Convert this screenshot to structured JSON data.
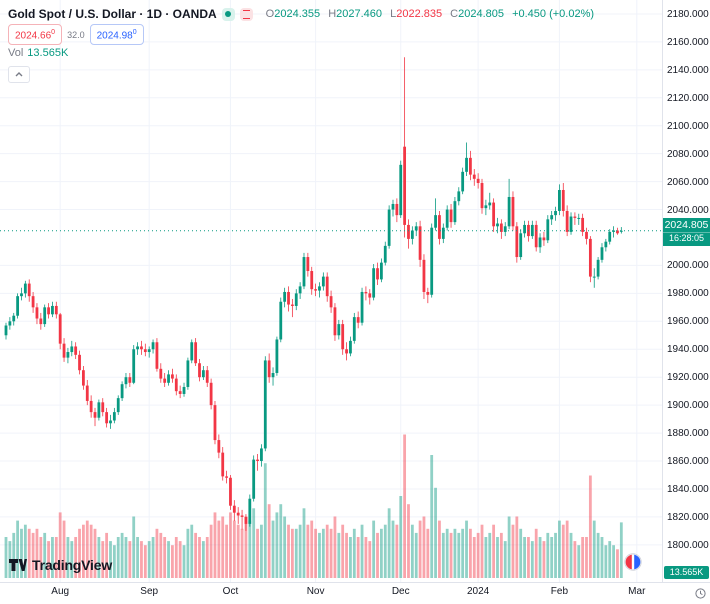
{
  "header": {
    "symbol_title": "Gold Spot / U.S. Dollar · 1D · OANDA",
    "ohlc": {
      "o_label": "O",
      "o": "2024.355",
      "h_label": "H",
      "h": "2027.460",
      "l_label": "L",
      "l": "2022.835",
      "c_label": "C",
      "c": "2024.805",
      "change": "+0.450 (+0.02%)"
    },
    "bid": "2024.66",
    "bid_sup": "0",
    "spread": "32.0",
    "ask": "2024.98",
    "ask_sup": "0",
    "vol_label": "Vol",
    "vol_value": "13.565K"
  },
  "icons": {
    "green_dot": "green-dot-icon",
    "red_list": "red-list-icon",
    "collapse": "chevron-up-icon",
    "clock": "timezone-clock-icon",
    "broker": "broker-logo-icon"
  },
  "colors": {
    "up": "#089981",
    "down": "#f23645",
    "vol_up": "rgba(8,153,129,0.45)",
    "vol_down": "rgba(242,54,69,0.45)",
    "grid": "#f0f3fa",
    "last_price_line": "#089981",
    "bid": "#f23645",
    "ask": "#2962ff"
  },
  "price_axis": {
    "labels": [
      "2180.000",
      "2160.000",
      "2140.000",
      "2120.000",
      "2100.000",
      "2080.000",
      "2060.000",
      "2040.000",
      "2000.000",
      "1980.000",
      "1960.000",
      "1940.000",
      "1920.000",
      "1900.000",
      "1880.000",
      "1860.000",
      "1840.000",
      "1820.000",
      "1800.000"
    ],
    "last_price": "2024.805",
    "countdown": "16:28:05",
    "volume_badge": "13.565K"
  },
  "time_axis": {
    "ticks": [
      {
        "i": 14,
        "label": "Aug"
      },
      {
        "i": 37,
        "label": "Sep"
      },
      {
        "i": 58,
        "label": "Oct"
      },
      {
        "i": 80,
        "label": "Nov"
      },
      {
        "i": 102,
        "label": "Dec"
      },
      {
        "i": 122,
        "label": "2024"
      },
      {
        "i": 143,
        "label": "Feb"
      },
      {
        "i": 163,
        "label": "Mar"
      }
    ]
  },
  "logo": {
    "wordmark": "TradingView"
  },
  "chart_data": {
    "type": "candlestick",
    "title": "Gold Spot / U.S. Dollar",
    "interval": "1D",
    "exchange": "OANDA",
    "ylim": [
      1789,
      2190
    ],
    "grid": true,
    "last_close": 2024.805,
    "candle_format": [
      "open",
      "high",
      "low",
      "close",
      "volume_k"
    ],
    "candles": [
      [
        1950,
        1959,
        1947,
        1957,
        10
      ],
      [
        1957,
        1963,
        1954,
        1960,
        9
      ],
      [
        1960,
        1966,
        1957,
        1964,
        11
      ],
      [
        1964,
        1980,
        1962,
        1978,
        14
      ],
      [
        1978,
        1984,
        1975,
        1980,
        12
      ],
      [
        1980,
        1989,
        1977,
        1987,
        13
      ],
      [
        1987,
        1990,
        1974,
        1978,
        12
      ],
      [
        1978,
        1981,
        1966,
        1970,
        11
      ],
      [
        1970,
        1973,
        1958,
        1962,
        12
      ],
      [
        1962,
        1966,
        1954,
        1958,
        10
      ],
      [
        1958,
        1972,
        1956,
        1970,
        11
      ],
      [
        1970,
        1973,
        1962,
        1965,
        9
      ],
      [
        1965,
        1974,
        1963,
        1971,
        10
      ],
      [
        1971,
        1974,
        1962,
        1965,
        10
      ],
      [
        1965,
        1966,
        1940,
        1944,
        16
      ],
      [
        1944,
        1948,
        1931,
        1934,
        14
      ],
      [
        1934,
        1941,
        1930,
        1938,
        10
      ],
      [
        1938,
        1946,
        1935,
        1942,
        9
      ],
      [
        1942,
        1945,
        1933,
        1936,
        10
      ],
      [
        1936,
        1939,
        1922,
        1925,
        12
      ],
      [
        1925,
        1928,
        1911,
        1914,
        13
      ],
      [
        1914,
        1918,
        1900,
        1903,
        14
      ],
      [
        1903,
        1907,
        1891,
        1895,
        13
      ],
      [
        1895,
        1898,
        1885,
        1891,
        12
      ],
      [
        1891,
        1904,
        1889,
        1902,
        10
      ],
      [
        1902,
        1905,
        1892,
        1895,
        9
      ],
      [
        1895,
        1898,
        1884,
        1887,
        11
      ],
      [
        1887,
        1893,
        1883,
        1889,
        9
      ],
      [
        1889,
        1898,
        1887,
        1895,
        8
      ],
      [
        1895,
        1907,
        1893,
        1905,
        10
      ],
      [
        1905,
        1917,
        1903,
        1915,
        11
      ],
      [
        1915,
        1923,
        1912,
        1920,
        10
      ],
      [
        1920,
        1923,
        1913,
        1916,
        9
      ],
      [
        1916,
        1943,
        1915,
        1940,
        15
      ],
      [
        1940,
        1945,
        1936,
        1942,
        10
      ],
      [
        1942,
        1946,
        1936,
        1940,
        9
      ],
      [
        1940,
        1944,
        1935,
        1938,
        8
      ],
      [
        1938,
        1942,
        1934,
        1940,
        9
      ],
      [
        1940,
        1947,
        1937,
        1945,
        10
      ],
      [
        1945,
        1948,
        1924,
        1926,
        12
      ],
      [
        1926,
        1930,
        1916,
        1919,
        11
      ],
      [
        1919,
        1923,
        1913,
        1916,
        10
      ],
      [
        1916,
        1925,
        1914,
        1922,
        9
      ],
      [
        1922,
        1926,
        1916,
        1919,
        8
      ],
      [
        1919,
        1922,
        1907,
        1910,
        10
      ],
      [
        1910,
        1914,
        1905,
        1908,
        9
      ],
      [
        1908,
        1916,
        1906,
        1913,
        8
      ],
      [
        1913,
        1934,
        1911,
        1932,
        12
      ],
      [
        1932,
        1947,
        1930,
        1945,
        13
      ],
      [
        1945,
        1948,
        1928,
        1930,
        11
      ],
      [
        1930,
        1933,
        1917,
        1920,
        10
      ],
      [
        1920,
        1928,
        1918,
        1925,
        9
      ],
      [
        1925,
        1928,
        1913,
        1916,
        10
      ],
      [
        1916,
        1919,
        1897,
        1900,
        13
      ],
      [
        1900,
        1903,
        1872,
        1875,
        16
      ],
      [
        1875,
        1879,
        1862,
        1866,
        14
      ],
      [
        1866,
        1870,
        1846,
        1849,
        15
      ],
      [
        1849,
        1853,
        1844,
        1848,
        13
      ],
      [
        1848,
        1850,
        1825,
        1828,
        16
      ],
      [
        1828,
        1832,
        1817,
        1823,
        14
      ],
      [
        1823,
        1827,
        1815,
        1821,
        13
      ],
      [
        1821,
        1825,
        1811,
        1820,
        12
      ],
      [
        1820,
        1822,
        1810,
        1815,
        15
      ],
      [
        1815,
        1836,
        1813,
        1833,
        14
      ],
      [
        1833,
        1864,
        1831,
        1861,
        17
      ],
      [
        1861,
        1865,
        1853,
        1860,
        12
      ],
      [
        1860,
        1872,
        1856,
        1869,
        13
      ],
      [
        1869,
        1935,
        1867,
        1932,
        28
      ],
      [
        1932,
        1937,
        1916,
        1920,
        18
      ],
      [
        1920,
        1927,
        1914,
        1923,
        14
      ],
      [
        1923,
        1949,
        1921,
        1947,
        16
      ],
      [
        1947,
        1977,
        1945,
        1974,
        18
      ],
      [
        1974,
        1984,
        1970,
        1981,
        15
      ],
      [
        1981,
        1985,
        1967,
        1972,
        13
      ],
      [
        1972,
        1976,
        1963,
        1971,
        12
      ],
      [
        1971,
        1983,
        1968,
        1980,
        12
      ],
      [
        1980,
        1988,
        1976,
        1985,
        13
      ],
      [
        1985,
        2009,
        1983,
        2006,
        17
      ],
      [
        2006,
        2009,
        1992,
        1996,
        13
      ],
      [
        1996,
        1999,
        1979,
        1983,
        14
      ],
      [
        1983,
        1987,
        1978,
        1982,
        12
      ],
      [
        1982,
        1988,
        1977,
        1985,
        11
      ],
      [
        1985,
        1995,
        1982,
        1992,
        12
      ],
      [
        1992,
        1995,
        1974,
        1978,
        13
      ],
      [
        1978,
        1982,
        1966,
        1970,
        12
      ],
      [
        1970,
        1973,
        1946,
        1950,
        15
      ],
      [
        1950,
        1961,
        1947,
        1958,
        11
      ],
      [
        1958,
        1961,
        1936,
        1940,
        13
      ],
      [
        1940,
        1945,
        1932,
        1937,
        11
      ],
      [
        1937,
        1949,
        1935,
        1946,
        10
      ],
      [
        1946,
        1966,
        1944,
        1963,
        12
      ],
      [
        1963,
        1967,
        1955,
        1959,
        10
      ],
      [
        1959,
        1984,
        1957,
        1981,
        13
      ],
      [
        1981,
        1985,
        1975,
        1980,
        10
      ],
      [
        1980,
        1983,
        1972,
        1977,
        9
      ],
      [
        1977,
        2001,
        1975,
        1998,
        14
      ],
      [
        1998,
        2002,
        1986,
        1990,
        11
      ],
      [
        1990,
        2005,
        1988,
        2002,
        12
      ],
      [
        2002,
        2017,
        2000,
        2014,
        13
      ],
      [
        2014,
        2043,
        2012,
        2040,
        17
      ],
      [
        2040,
        2047,
        2035,
        2044,
        14
      ],
      [
        2044,
        2048,
        2031,
        2036,
        13
      ],
      [
        2036,
        2075,
        2034,
        2072,
        20
      ],
      [
        2085,
        2149,
        2020,
        2029,
        35
      ],
      [
        2029,
        2033,
        2012,
        2019,
        18
      ],
      [
        2019,
        2028,
        2015,
        2025,
        13
      ],
      [
        2025,
        2031,
        2021,
        2028,
        11
      ],
      [
        2028,
        2032,
        1999,
        2004,
        14
      ],
      [
        2004,
        2008,
        1976,
        1981,
        15
      ],
      [
        1981,
        1984,
        1973,
        1979,
        12
      ],
      [
        1979,
        2030,
        1977,
        2027,
        30
      ],
      [
        2027,
        2048,
        2025,
        2036,
        22
      ],
      [
        2036,
        2039,
        2015,
        2019,
        14
      ],
      [
        2019,
        2030,
        2016,
        2027,
        11
      ],
      [
        2027,
        2043,
        2025,
        2040,
        12
      ],
      [
        2040,
        2044,
        2027,
        2031,
        11
      ],
      [
        2031,
        2049,
        2029,
        2046,
        12
      ],
      [
        2046,
        2056,
        2043,
        2053,
        11
      ],
      [
        2053,
        2070,
        2051,
        2067,
        12
      ],
      [
        2067,
        2088,
        2064,
        2077,
        14
      ],
      [
        2077,
        2082,
        2061,
        2065,
        12
      ],
      [
        2065,
        2069,
        2057,
        2062,
        10
      ],
      [
        2062,
        2066,
        2055,
        2059,
        11
      ],
      [
        2059,
        2062,
        2037,
        2041,
        13
      ],
      [
        2041,
        2047,
        2036,
        2043,
        10
      ],
      [
        2043,
        2052,
        2040,
        2045,
        11
      ],
      [
        2045,
        2048,
        2024,
        2028,
        13
      ],
      [
        2028,
        2034,
        2023,
        2030,
        10
      ],
      [
        2030,
        2033,
        2019,
        2024,
        11
      ],
      [
        2024,
        2031,
        2021,
        2028,
        9
      ],
      [
        2028,
        2062,
        2026,
        2049,
        15
      ],
      [
        2049,
        2053,
        2025,
        2028,
        13
      ],
      [
        2028,
        2031,
        2002,
        2006,
        15
      ],
      [
        2006,
        2026,
        2004,
        2023,
        12
      ],
      [
        2023,
        2032,
        2020,
        2029,
        10
      ],
      [
        2029,
        2032,
        2017,
        2021,
        10
      ],
      [
        2021,
        2032,
        2019,
        2029,
        9
      ],
      [
        2029,
        2032,
        2010,
        2013,
        12
      ],
      [
        2013,
        2023,
        2009,
        2020,
        10
      ],
      [
        2020,
        2024,
        2014,
        2018,
        9
      ],
      [
        2018,
        2036,
        2016,
        2033,
        11
      ],
      [
        2033,
        2039,
        2029,
        2036,
        10
      ],
      [
        2036,
        2042,
        2032,
        2039,
        11
      ],
      [
        2039,
        2058,
        2036,
        2054,
        14
      ],
      [
        2054,
        2059,
        2035,
        2039,
        13
      ],
      [
        2039,
        2043,
        2021,
        2024,
        14
      ],
      [
        2024,
        2038,
        2022,
        2035,
        11
      ],
      [
        2035,
        2038,
        2029,
        2034,
        9
      ],
      [
        2034,
        2037,
        2029,
        2034,
        8
      ],
      [
        2034,
        2037,
        2021,
        2024,
        10
      ],
      [
        2024,
        2027,
        2015,
        2019,
        10
      ],
      [
        2019,
        2021,
        1988,
        1992,
        25
      ],
      [
        1992,
        1998,
        1984,
        1992,
        14
      ],
      [
        1992,
        2006,
        1990,
        2004,
        11
      ],
      [
        2004,
        2016,
        2002,
        2013,
        10
      ],
      [
        2013,
        2019,
        2010,
        2017,
        8
      ],
      [
        2017,
        2026,
        2015,
        2024,
        9
      ],
      [
        2024,
        2028,
        2020,
        2025,
        8
      ],
      [
        2025,
        2027,
        2022,
        2023,
        7
      ],
      [
        2024.355,
        2027.46,
        2022.835,
        2024.805,
        13.565
      ]
    ]
  }
}
